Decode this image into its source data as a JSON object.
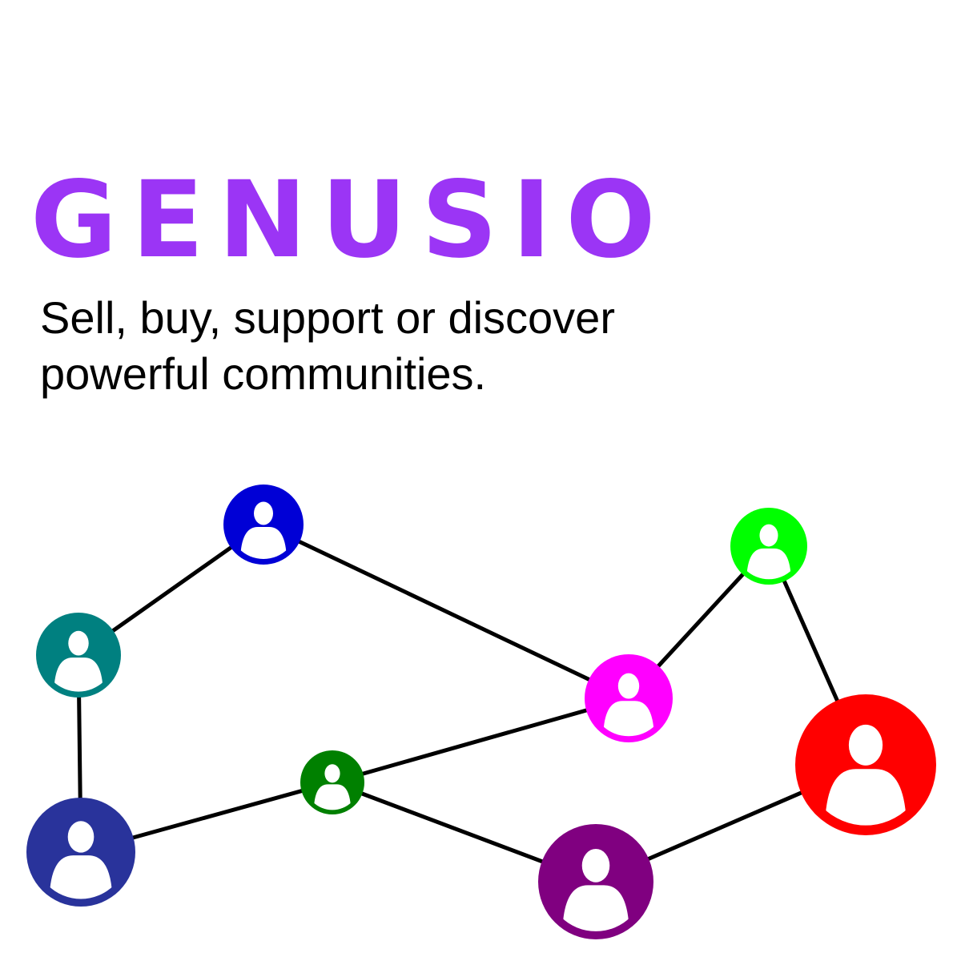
{
  "brand": {
    "name": "GENUSIO",
    "color": "#9b35f5"
  },
  "tagline": {
    "line1": "Sell, buy, support or discover",
    "line2": "powerful communities."
  },
  "network": {
    "nodes": [
      {
        "id": "blue",
        "color": "#0000d6"
      },
      {
        "id": "teal",
        "color": "#008080"
      },
      {
        "id": "navy",
        "color": "#29339b"
      },
      {
        "id": "green",
        "color": "#008000"
      },
      {
        "id": "magenta",
        "color": "#ff00ff"
      },
      {
        "id": "lime",
        "color": "#00ff00"
      },
      {
        "id": "red",
        "color": "#ff0000"
      },
      {
        "id": "purple",
        "color": "#800080"
      }
    ],
    "icon": "user-silhouette-icon"
  }
}
